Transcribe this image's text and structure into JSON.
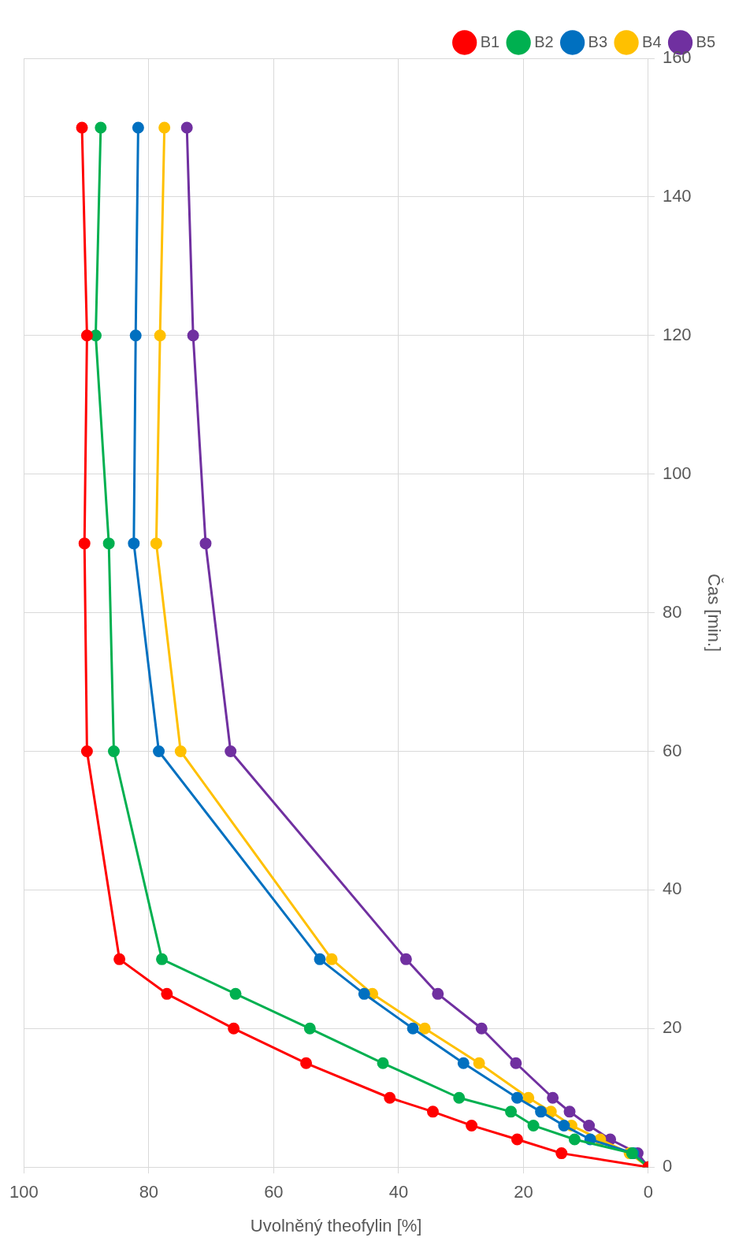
{
  "chart_data": {
    "type": "line",
    "xlabel": "Uvolněný theofylin [%]",
    "ylabel": "Čas [min.]",
    "series": [
      {
        "name": "B1",
        "color": "#ff0000",
        "x": [
          0,
          13.9,
          21.0,
          28.3,
          34.5,
          41.4,
          54.8,
          66.4,
          77.1,
          84.7,
          89.9,
          90.3,
          89.9,
          90.7
        ],
        "values": [
          0,
          2,
          4,
          6,
          8,
          10,
          15,
          20,
          25,
          30,
          60,
          90,
          120,
          150
        ]
      },
      {
        "name": "B2",
        "color": "#00b050",
        "x": [
          0,
          2.6,
          11.8,
          18.4,
          22.0,
          30.3,
          42.5,
          54.2,
          66.1,
          77.9,
          85.6,
          86.4,
          88.5,
          87.7
        ],
        "values": [
          0,
          2,
          4,
          6,
          8,
          10,
          15,
          20,
          25,
          30,
          60,
          90,
          120,
          150
        ]
      },
      {
        "name": "B3",
        "color": "#0070c0",
        "x": [
          0,
          2.4,
          9.3,
          13.5,
          17.2,
          21.0,
          29.6,
          37.7,
          45.5,
          52.6,
          78.4,
          82.4,
          82.1,
          81.7
        ],
        "values": [
          0,
          2,
          4,
          6,
          8,
          10,
          15,
          20,
          25,
          30,
          60,
          90,
          120,
          150
        ]
      },
      {
        "name": "B4",
        "color": "#ffc000",
        "x": [
          0,
          3.0,
          7.7,
          12.3,
          15.6,
          19.2,
          27.1,
          35.8,
          44.2,
          50.7,
          74.9,
          78.8,
          78.2,
          77.5
        ],
        "values": [
          0,
          2,
          4,
          6,
          8,
          10,
          15,
          20,
          25,
          30,
          60,
          90,
          120,
          150
        ]
      },
      {
        "name": "B5",
        "color": "#7030a0",
        "x": [
          0,
          1.7,
          6.1,
          9.5,
          12.6,
          15.3,
          21.2,
          26.7,
          33.7,
          38.8,
          66.9,
          70.9,
          72.9,
          73.9
        ],
        "values": [
          0,
          2,
          4,
          6,
          8,
          10,
          15,
          20,
          25,
          30,
          60,
          90,
          120,
          150
        ]
      }
    ],
    "xlim": [
      100,
      0
    ],
    "xticks": [
      100,
      80,
      60,
      40,
      20,
      0
    ],
    "ylim": [
      0,
      160
    ],
    "yticks": [
      0,
      20,
      40,
      60,
      80,
      100,
      120,
      140,
      160
    ],
    "grid": true,
    "legend": "top right",
    "marker": "circle",
    "line_style": "solid"
  }
}
